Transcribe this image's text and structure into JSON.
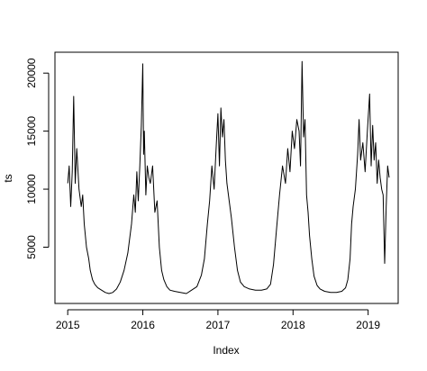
{
  "chart_data": {
    "type": "line",
    "title": "",
    "xlabel": "Index",
    "ylabel": "ts",
    "xlim": [
      2014.83,
      2019.4
    ],
    "ylim": [
      150,
      21800
    ],
    "x_ticks": [
      2015,
      2016,
      2017,
      2018,
      2019
    ],
    "x_tick_labels": [
      "2015",
      "2016",
      "2017",
      "2018",
      "2019"
    ],
    "y_ticks": [
      5000,
      10000,
      15000,
      20000
    ],
    "y_tick_labels": [
      "5000",
      "10000",
      "15000",
      "20000"
    ],
    "grid": false,
    "line_color": "#000000",
    "series": [
      {
        "x": [
          2015.0,
          2015.02,
          2015.04,
          2015.06,
          2015.08,
          2015.1,
          2015.12,
          2015.15,
          2015.18,
          2015.2,
          2015.22,
          2015.25,
          2015.28,
          2015.3,
          2015.33,
          2015.36,
          2015.4,
          2015.45,
          2015.5,
          2015.55,
          2015.6,
          2015.65,
          2015.7,
          2015.75,
          2015.8,
          2015.85,
          2015.88,
          2015.9,
          2015.92,
          2015.94,
          2015.96,
          2015.98,
          2016.0,
          2016.01,
          2016.02,
          2016.04,
          2016.06,
          2016.08,
          2016.1,
          2016.13,
          2016.16,
          2016.19,
          2016.22,
          2016.25,
          2016.28,
          2016.32,
          2016.36,
          2016.42,
          2016.5,
          2016.58,
          2016.65,
          2016.72,
          2016.78,
          2016.82,
          2016.86,
          2016.89,
          2016.92,
          2016.95,
          2016.98,
          2017.0,
          2017.02,
          2017.04,
          2017.06,
          2017.08,
          2017.1,
          2017.12,
          2017.15,
          2017.18,
          2017.22,
          2017.26,
          2017.3,
          2017.35,
          2017.42,
          2017.5,
          2017.58,
          2017.65,
          2017.7,
          2017.74,
          2017.78,
          2017.82,
          2017.86,
          2017.9,
          2017.93,
          2017.96,
          2017.99,
          2018.02,
          2018.05,
          2018.08,
          2018.1,
          2018.12,
          2018.14,
          2018.16,
          2018.18,
          2018.2,
          2018.22,
          2018.25,
          2018.28,
          2018.32,
          2018.36,
          2018.42,
          2018.5,
          2018.58,
          2018.65,
          2018.7,
          2018.73,
          2018.76,
          2018.78,
          2018.8,
          2018.83,
          2018.86,
          2018.88,
          2018.9,
          2018.93,
          2018.96,
          2018.99,
          2019.02,
          2019.04,
          2019.06,
          2019.08,
          2019.1,
          2019.12,
          2019.14,
          2019.16,
          2019.18,
          2019.2,
          2019.22,
          2019.24,
          2019.26,
          2019.28
        ],
        "y": [
          10500,
          12000,
          8500,
          11500,
          18000,
          10500,
          13500,
          10000,
          8500,
          9500,
          7000,
          5000,
          4000,
          3000,
          2200,
          1800,
          1500,
          1300,
          1100,
          1000,
          1100,
          1400,
          2000,
          3000,
          4500,
          7000,
          9500,
          8000,
          11500,
          9000,
          12000,
          15500,
          20800,
          13000,
          15000,
          9500,
          12000,
          11000,
          10500,
          12000,
          8000,
          9000,
          5000,
          3000,
          2200,
          1600,
          1300,
          1200,
          1100,
          1000,
          1300,
          1600,
          2600,
          4000,
          7000,
          9000,
          12000,
          10000,
          14000,
          16500,
          12000,
          17000,
          14500,
          16000,
          12500,
          10500,
          9000,
          7500,
          5000,
          3000,
          2000,
          1600,
          1400,
          1300,
          1300,
          1400,
          1800,
          3500,
          6500,
          9500,
          12000,
          10500,
          13500,
          11500,
          15000,
          13500,
          16000,
          15000,
          12000,
          21000,
          14500,
          16000,
          9500,
          8000,
          6000,
          4000,
          2500,
          1700,
          1400,
          1200,
          1100,
          1100,
          1200,
          1500,
          2200,
          4000,
          7000,
          8500,
          10000,
          13000,
          16000,
          12500,
          14000,
          11500,
          15000,
          18200,
          12000,
          15500,
          12500,
          14000,
          10500,
          12500,
          11000,
          10000,
          9500,
          3600,
          8500,
          12000,
          11000
        ]
      }
    ]
  }
}
